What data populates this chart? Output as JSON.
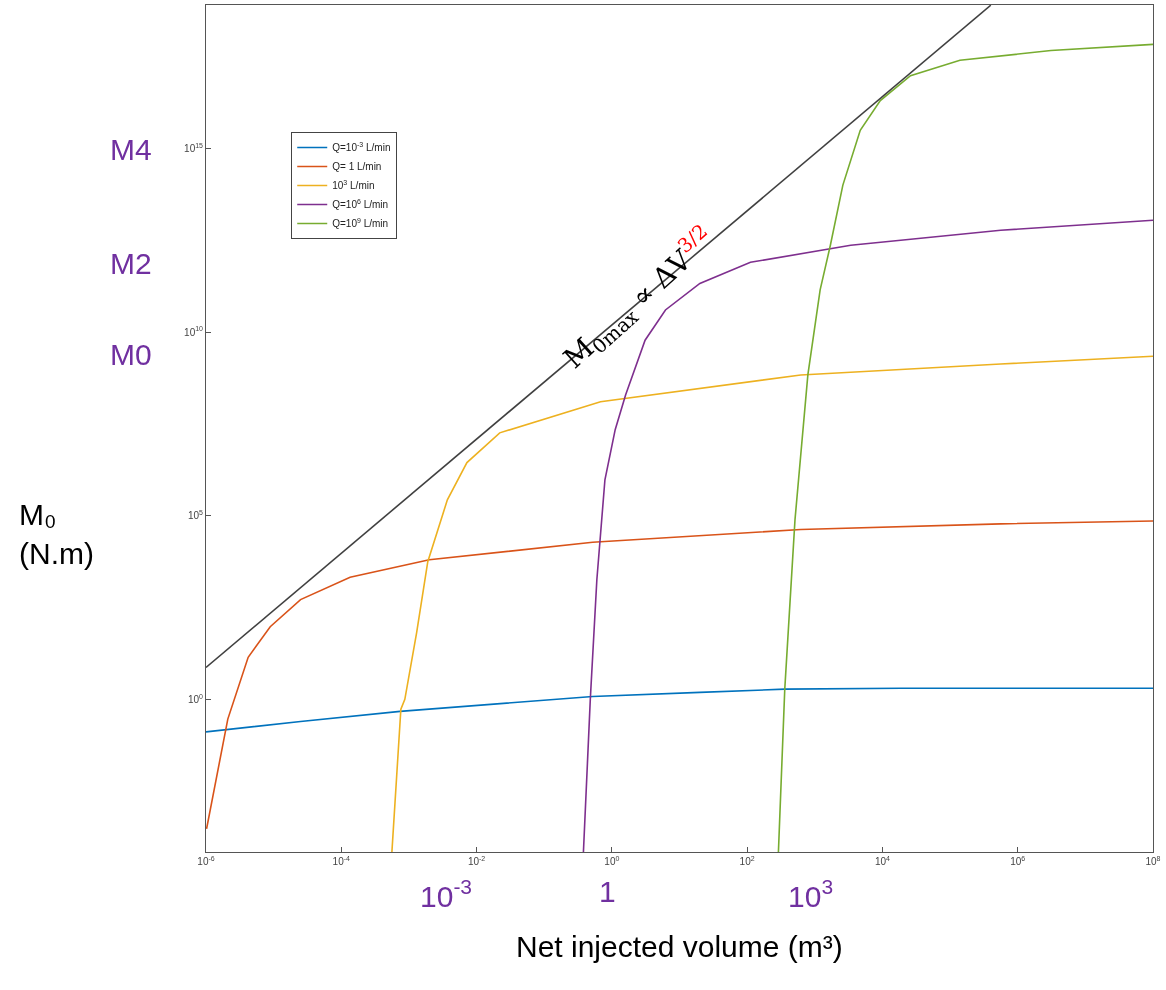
{
  "chart_data": {
    "type": "line",
    "xlabel": "Net injected volume (m³)",
    "ylabel": "M₀ (N.m)",
    "log": "xy",
    "xlim": [
      1e-06,
      100000000.0
    ],
    "ylim": [
      7e-05,
      8e+18
    ],
    "xticks": [
      {
        "value": 1e-06,
        "label": "10$^{-6}$"
      },
      {
        "value": 0.0001,
        "label": "10$^{-4}$"
      },
      {
        "value": 0.01,
        "label": "10$^{-2}$"
      },
      {
        "value": 1,
        "label": "10$^{0}$"
      },
      {
        "value": 100,
        "label": "10$^{2}$"
      },
      {
        "value": 10000.0,
        "label": "10$^{4}$"
      },
      {
        "value": 1000000.0,
        "label": "10$^{6}$"
      },
      {
        "value": 100000000.0,
        "label": "10$^{8}$"
      }
    ],
    "yticks": [
      {
        "value": 1,
        "label": "10$^{0}$"
      },
      {
        "value": 100000.0,
        "label": "10$^{5}$"
      },
      {
        "value": 10000000000.0,
        "label": "10$^{10}$"
      },
      {
        "value": 1000000000000000.0,
        "label": "10$^{15}$"
      }
    ],
    "legend": "top left",
    "series": [
      {
        "name": "Q=10$^{-3}$ L/min",
        "color": "#0072bd",
        "x": [
          1e-06,
          2.5e-05,
          0.00074,
          0.52,
          20,
          360,
          19000.0,
          100000000.0
        ],
        "values": [
          0.13,
          0.25,
          0.47,
          1.2,
          1.55,
          1.9,
          2.0,
          2.0
        ]
      },
      {
        "name": "Q= 1 L/min",
        "color": "#d95319",
        "x": [
          1.02e-06,
          2.1e-06,
          4.2e-06,
          8.9e-06,
          2.5e-05,
          0.000135,
          0.002,
          0.52,
          620,
          560000.0,
          100000000.0
        ],
        "values": [
          0.0003,
          0.29,
          14,
          95,
          520,
          2100,
          6300,
          19000.0,
          42000.0,
          60000.0,
          72000.0
        ]
      },
      {
        "name": "10$^{3}$ L/min",
        "color": "#edb120",
        "x": [
          0.00056,
          0.00076,
          0.00087,
          0.0013,
          0.0019,
          0.0037,
          0.0072,
          0.022,
          0.68,
          620,
          560000.0,
          100000000.0
        ],
        "values": [
          7e-05,
          0.54,
          1,
          66,
          5600,
          270000.0,
          2800000.0,
          18000000.0,
          126000000.0,
          680000000.0,
          1350000000.0,
          2200000000.0
        ]
      },
      {
        "name": "Q=10$^{6}$ L/min",
        "color": "#7e2f8e",
        "x": [
          0.38,
          0.48,
          0.6,
          0.79,
          1.12,
          1.6,
          3.1,
          6.2,
          20,
          112,
          3400,
          560000.0,
          100000000.0
        ],
        "values": [
          7e-05,
          1,
          1800,
          950000.0,
          22000000.0,
          195000000.0,
          6000000000.0,
          40000000000.0,
          210000000000.0,
          790000000000.0,
          2300000000000.0,
          5900000000000.0,
          11000000000000.0
        ]
      },
      {
        "name": "Q=10$^{9}$ L/min",
        "color": "#77ac30",
        "x": [
          290,
          360,
          510,
          790,
          1200,
          1700,
          2600,
          4700,
          9300,
          26000.0,
          140000.0,
          3100000.0,
          100000000.0
        ],
        "values": [
          7e-05,
          1.9,
          78000.0,
          680000000.0,
          140000000000.0,
          2300000000000.0,
          100000000000000.0,
          3100000000000000.0,
          2e+16,
          9.5e+16,
          2.5e+17,
          4.6e+17,
          6.8e+17
        ]
      },
      {
        "color": "#404040",
        "x": [
          1e-06,
          400000.0
        ],
        "values": [
          7.4,
          7.9e+18
        ]
      }
    ],
    "annotations": [
      {
        "text": "M$_{0max}$ ∝ ΔV$^{3/2}$",
        "x": 2.6,
        "y": 80000000000.0
      },
      "M4",
      "M2",
      "M0",
      "10$^{-3}$",
      "1",
      "10$^{3}$"
    ]
  }
}
